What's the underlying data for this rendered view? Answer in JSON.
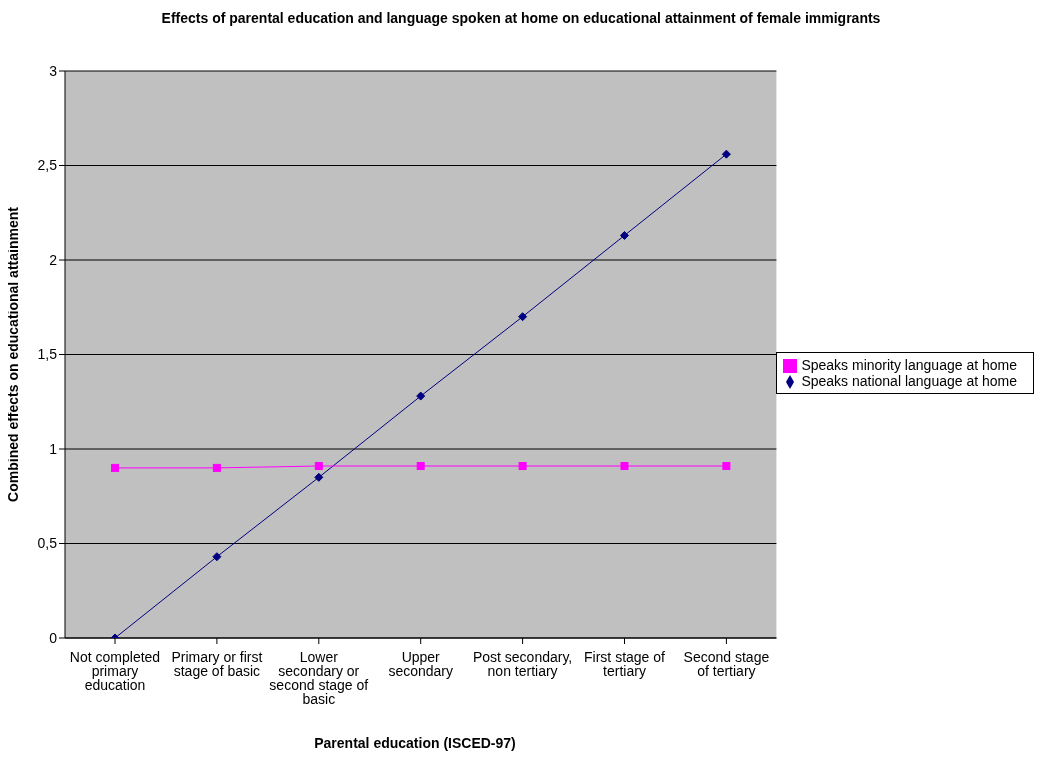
{
  "chart_data": {
    "type": "line",
    "title": "Effects of parental education and language spoken at home on educational attainment of female immigrants",
    "xlabel": "Parental education (ISCED-97)",
    "ylabel": "Combined effects on educational attainment",
    "categories": [
      "Not completed primary education",
      "Primary or first stage of basic",
      "Lower secondary or second stage of basic",
      "Upper secondary",
      "Post secondary, non tertiary",
      "First stage of tertiary",
      "Second stage of tertiary"
    ],
    "series": [
      {
        "name": "Speaks national language at home",
        "color": "#000080",
        "marker": "diamond",
        "values": [
          0,
          0.43,
          0.85,
          1.28,
          1.7,
          2.13,
          2.56
        ]
      },
      {
        "name": "Speaks minority language at home",
        "color": "#ff00ff",
        "marker": "square",
        "values": [
          0.9,
          0.9,
          0.91,
          0.91,
          0.91,
          0.91,
          0.91
        ]
      }
    ],
    "ylim": [
      0,
      3
    ],
    "yticks": [
      0,
      {
        "value": 0.5,
        "label": "0,5"
      },
      1,
      {
        "value": 1.5,
        "label": "1,5"
      },
      2,
      {
        "value": 2.5,
        "label": "2,5"
      },
      3
    ],
    "grid": "y",
    "legend": "right"
  }
}
